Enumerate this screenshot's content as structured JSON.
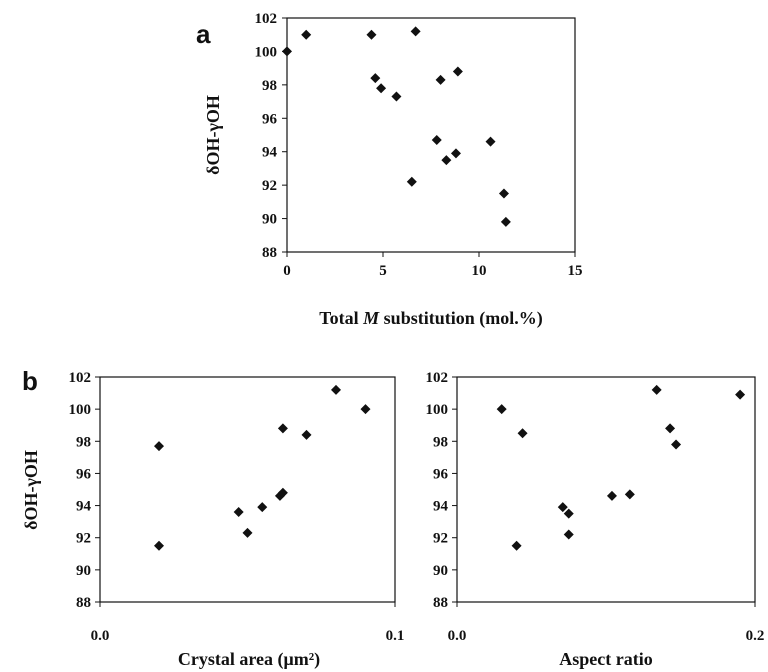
{
  "chart_data": [
    {
      "type": "scatter",
      "panel_label": "a",
      "xlabel_parts": [
        "Total ",
        "M",
        " substitution (mol.%)"
      ],
      "ylabel": "δOH-γOH",
      "xlim": [
        0,
        15
      ],
      "ylim": [
        88,
        102
      ],
      "xticks": [
        "0",
        "5",
        "10",
        "15"
      ],
      "yticks": [
        "88",
        "90",
        "92",
        "94",
        "96",
        "98",
        "100",
        "102"
      ],
      "marker": "diamond",
      "color": "#111111",
      "points": [
        {
          "x": 0.0,
          "y": 100.0
        },
        {
          "x": 1.0,
          "y": 101.0
        },
        {
          "x": 4.4,
          "y": 101.0
        },
        {
          "x": 6.7,
          "y": 101.2
        },
        {
          "x": 4.6,
          "y": 98.4
        },
        {
          "x": 4.9,
          "y": 97.8
        },
        {
          "x": 5.7,
          "y": 97.3
        },
        {
          "x": 8.0,
          "y": 98.3
        },
        {
          "x": 8.9,
          "y": 98.8
        },
        {
          "x": 7.8,
          "y": 94.7
        },
        {
          "x": 8.3,
          "y": 93.5
        },
        {
          "x": 8.8,
          "y": 93.9
        },
        {
          "x": 10.6,
          "y": 94.6
        },
        {
          "x": 6.5,
          "y": 92.2
        },
        {
          "x": 11.3,
          "y": 91.5
        },
        {
          "x": 11.4,
          "y": 89.8
        }
      ]
    },
    {
      "type": "scatter",
      "panel_label": "b",
      "xlabel": "Crystal area  (μm²)",
      "ylabel": "δOH-γOH",
      "xlim": [
        0,
        0.1
      ],
      "ylim": [
        88,
        102
      ],
      "xticks": [
        "0.0",
        "0.1"
      ],
      "yticks": [
        "88",
        "90",
        "92",
        "94",
        "96",
        "98",
        "100",
        "102"
      ],
      "marker": "diamond",
      "color": "#111111",
      "points": [
        {
          "x": 0.02,
          "y": 97.7
        },
        {
          "x": 0.02,
          "y": 91.5
        },
        {
          "x": 0.047,
          "y": 93.6
        },
        {
          "x": 0.05,
          "y": 92.3
        },
        {
          "x": 0.055,
          "y": 93.9
        },
        {
          "x": 0.061,
          "y": 94.6
        },
        {
          "x": 0.062,
          "y": 94.8
        },
        {
          "x": 0.062,
          "y": 98.8
        },
        {
          "x": 0.07,
          "y": 98.4
        },
        {
          "x": 0.08,
          "y": 101.2
        },
        {
          "x": 0.09,
          "y": 100.0
        }
      ]
    },
    {
      "type": "scatter",
      "xlabel": "Aspect ratio",
      "xlim": [
        0,
        0.2
      ],
      "ylim": [
        88,
        102
      ],
      "xticks": [
        "0.0",
        "0.2"
      ],
      "yticks": [
        "88",
        "90",
        "92",
        "94",
        "96",
        "98",
        "100",
        "102"
      ],
      "marker": "diamond",
      "color": "#111111",
      "points": [
        {
          "x": 0.03,
          "y": 100.0
        },
        {
          "x": 0.044,
          "y": 98.5
        },
        {
          "x": 0.04,
          "y": 91.5
        },
        {
          "x": 0.071,
          "y": 93.9
        },
        {
          "x": 0.075,
          "y": 93.5
        },
        {
          "x": 0.075,
          "y": 92.2
        },
        {
          "x": 0.104,
          "y": 94.6
        },
        {
          "x": 0.116,
          "y": 94.7
        },
        {
          "x": 0.134,
          "y": 101.2
        },
        {
          "x": 0.143,
          "y": 98.8
        },
        {
          "x": 0.147,
          "y": 97.8
        },
        {
          "x": 0.19,
          "y": 100.9
        }
      ]
    }
  ]
}
